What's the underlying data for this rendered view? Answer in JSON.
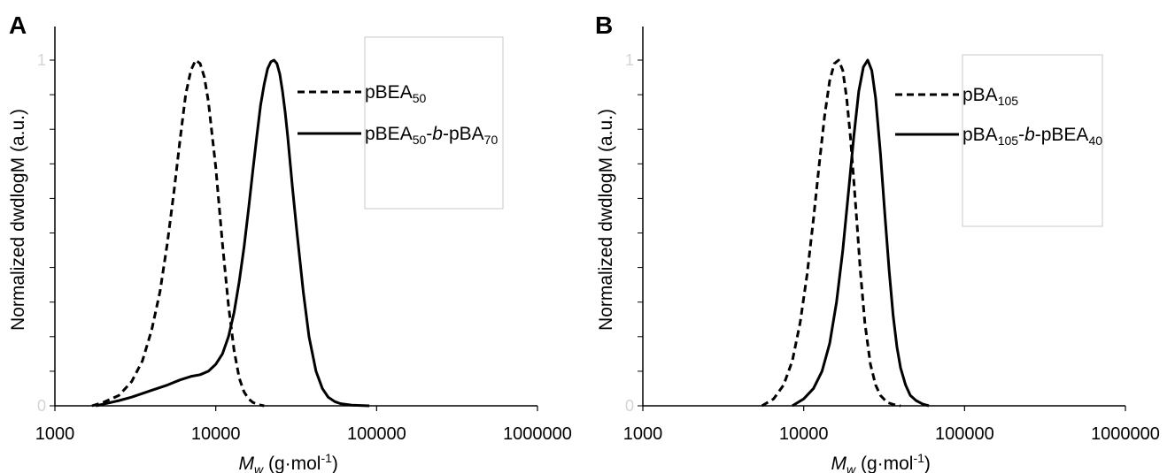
{
  "chart_data": [
    {
      "panel": "A",
      "type": "line",
      "xscale": "log",
      "xlim": [
        1000,
        1000000
      ],
      "ylim": [
        0,
        1
      ],
      "xticks": [
        "1000",
        "10000",
        "100000",
        "1000000"
      ],
      "yticks": [
        "0",
        "1"
      ],
      "xlabel": {
        "main": "M",
        "sub": "w",
        "unit": "(g·mol",
        "exp": "-1",
        "close": ")"
      },
      "ylabel": "Normalized dwdlogM (a.u.)",
      "legend_position": "top-right",
      "series": [
        {
          "name": {
            "base": "pBEA",
            "sub1": "50",
            "mid": "",
            "italic": "",
            "base2": "",
            "sub2": ""
          },
          "style": "dashed",
          "x": [
            1700,
            2000,
            2500,
            3000,
            3500,
            4000,
            4500,
            5000,
            5500,
            6000,
            6500,
            7000,
            7500,
            8000,
            8500,
            9000,
            10000,
            11000,
            12000,
            13000,
            14000,
            15000,
            16000,
            17000,
            18000,
            19000,
            20000
          ],
          "y": [
            0.0,
            0.01,
            0.03,
            0.07,
            0.13,
            0.22,
            0.33,
            0.47,
            0.62,
            0.77,
            0.9,
            0.97,
            1.0,
            0.99,
            0.95,
            0.88,
            0.69,
            0.47,
            0.29,
            0.16,
            0.08,
            0.04,
            0.02,
            0.01,
            0.005,
            0.002,
            0.0
          ]
        },
        {
          "name": {
            "base": "pBEA",
            "sub1": "50",
            "mid": "-",
            "italic": "b",
            "base2": "-pBA",
            "sub2": "70"
          },
          "style": "solid",
          "x": [
            1800,
            2000,
            2500,
            3000,
            4000,
            5000,
            6000,
            7000,
            8000,
            9000,
            10000,
            11000,
            12000,
            13000,
            14000,
            15000,
            16000,
            17000,
            18000,
            19000,
            20000,
            21000,
            22000,
            23000,
            24000,
            25000,
            26000,
            27000,
            28000,
            30000,
            32000,
            35000,
            38000,
            42000,
            46000,
            50000,
            55000,
            60000,
            70000,
            90000
          ],
          "y": [
            0.0,
            0.005,
            0.015,
            0.025,
            0.045,
            0.06,
            0.075,
            0.085,
            0.09,
            0.1,
            0.12,
            0.15,
            0.2,
            0.27,
            0.36,
            0.46,
            0.57,
            0.68,
            0.78,
            0.87,
            0.93,
            0.975,
            0.995,
            1.0,
            0.99,
            0.96,
            0.91,
            0.85,
            0.78,
            0.63,
            0.5,
            0.33,
            0.2,
            0.1,
            0.05,
            0.025,
            0.012,
            0.006,
            0.002,
            0.0
          ]
        }
      ]
    },
    {
      "panel": "B",
      "type": "line",
      "xscale": "log",
      "xlim": [
        1000,
        1000000
      ],
      "ylim": [
        0,
        1
      ],
      "xticks": [
        "1000",
        "10000",
        "100000",
        "1000000"
      ],
      "yticks": [
        "0",
        "1"
      ],
      "xlabel": {
        "main": "M",
        "sub": "w",
        "unit": "(g·mol",
        "exp": "-1",
        "close": ")"
      },
      "ylabel": "Normalized dwdlogM (a.u.)",
      "legend_position": "top-right",
      "series": [
        {
          "name": {
            "base": "pBA",
            "sub1": "105",
            "mid": "",
            "italic": "",
            "base2": "",
            "sub2": ""
          },
          "style": "dashed",
          "x": [
            5500,
            6500,
            7500,
            8500,
            9500,
            10500,
            11500,
            12500,
            13500,
            14500,
            15500,
            16500,
            17500,
            18500,
            19500,
            20500,
            21500,
            22500,
            24000,
            26000,
            28000,
            30000,
            33000,
            36000,
            40000
          ],
          "y": [
            0.0,
            0.02,
            0.06,
            0.13,
            0.24,
            0.38,
            0.54,
            0.7,
            0.84,
            0.94,
            0.99,
            1.0,
            0.97,
            0.89,
            0.78,
            0.65,
            0.52,
            0.39,
            0.24,
            0.12,
            0.06,
            0.03,
            0.01,
            0.004,
            0.0
          ]
        },
        {
          "name": {
            "base": "pBA",
            "sub1": "105",
            "mid": "-",
            "italic": "b",
            "base2": "-pBEA",
            "sub2": "40"
          },
          "style": "solid",
          "x": [
            8500,
            10000,
            11500,
            13000,
            14500,
            16000,
            17500,
            19000,
            20500,
            22000,
            23500,
            25000,
            26500,
            28000,
            30000,
            32000,
            34000,
            36000,
            38000,
            40000,
            43000,
            46000,
            50000,
            55000,
            60000
          ],
          "y": [
            0.0,
            0.02,
            0.05,
            0.1,
            0.18,
            0.3,
            0.45,
            0.62,
            0.78,
            0.91,
            0.98,
            1.0,
            0.97,
            0.89,
            0.73,
            0.55,
            0.39,
            0.26,
            0.17,
            0.11,
            0.06,
            0.03,
            0.015,
            0.005,
            0.0
          ]
        }
      ]
    }
  ]
}
